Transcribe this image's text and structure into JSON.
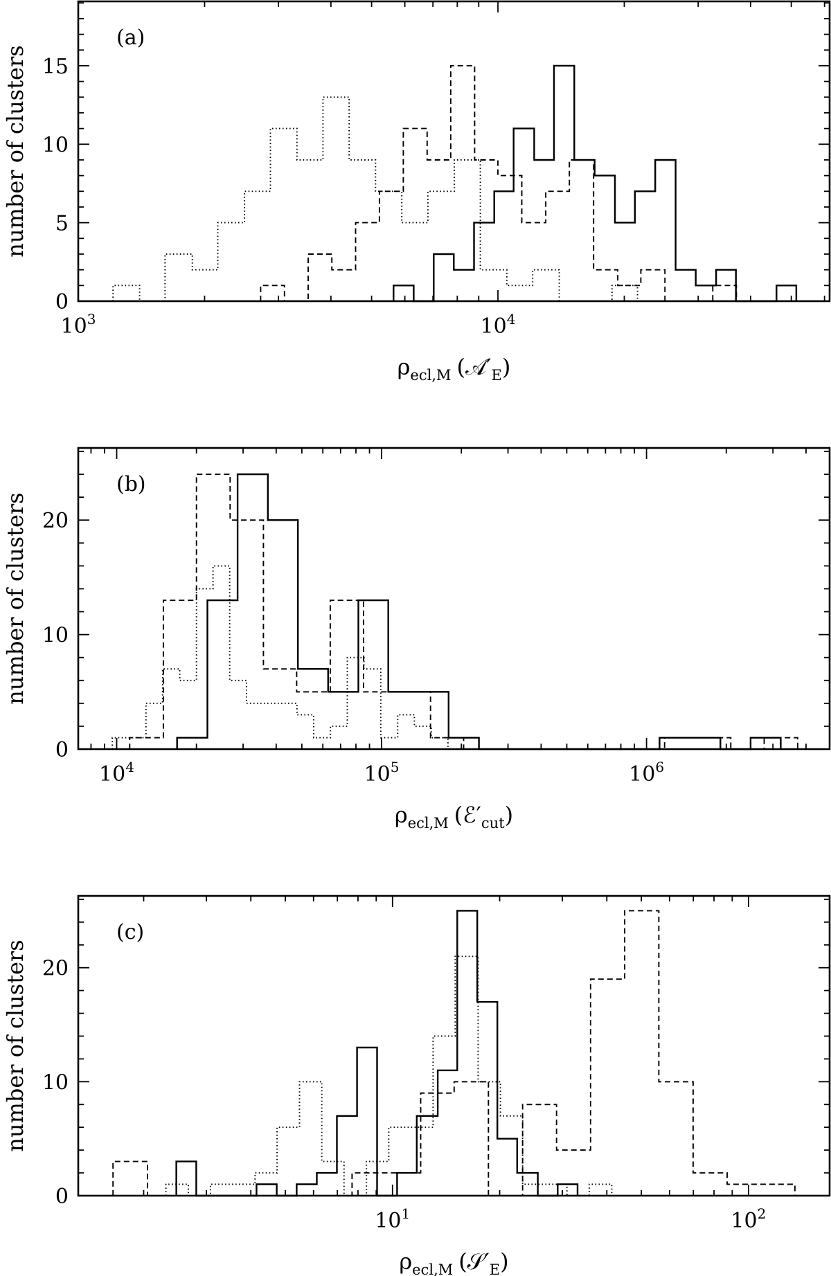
{
  "chart_data": [
    {
      "type": "bar",
      "style": "step-histogram",
      "panel_label": "(a)",
      "ylabel": "number of clusters",
      "xlabel": {
        "symbol": "ρ",
        "sub": "ecl,M",
        "open": "(",
        "arg": "𝒜′",
        "arg_sub": "E",
        "close": ")"
      },
      "xscale": "log",
      "xlim": [
        1000,
        61700
      ],
      "ylim": [
        0,
        19.1
      ],
      "grid": false,
      "y_ticks": [
        0,
        5,
        10,
        15
      ],
      "y_minor_step": 1,
      "x_ticks": [
        {
          "value": 1000,
          "base": "10",
          "exp": "3"
        },
        {
          "value": 10000,
          "base": "10",
          "exp": "4"
        }
      ],
      "series": [
        {
          "line_style": "solid",
          "bin_edges": [
            5640,
            6300,
            7030,
            7850,
            8770,
            9800,
            10900,
            12200,
            13600,
            15200,
            17000,
            19000,
            21200,
            23700,
            26500,
            29600,
            33100,
            36900,
            41200,
            46100,
            51400
          ],
          "counts": [
            1,
            0,
            3,
            2,
            5,
            7,
            11,
            9,
            15,
            9,
            8,
            5,
            7,
            9,
            2,
            1,
            2,
            0,
            0,
            1
          ]
        },
        {
          "line_style": "dashed",
          "bin_edges": [
            2720,
            3100,
            3530,
            4020,
            4580,
            5220,
            5950,
            6780,
            7720,
            8800,
            10000,
            11400,
            13000,
            14800,
            16900,
            19300,
            21900,
            25000,
            28500,
            32500,
            37000
          ],
          "counts": [
            1,
            0,
            3,
            2,
            5,
            7,
            11,
            9,
            15,
            9,
            8,
            5,
            7,
            9,
            2,
            1,
            2,
            0,
            0,
            1
          ]
        },
        {
          "line_style": "dotted",
          "bin_edges": [
            1210,
            1400,
            1610,
            1870,
            2150,
            2490,
            2870,
            3320,
            3830,
            4420,
            5110,
            5900,
            6810,
            7870,
            9080,
            10500,
            12100,
            14000,
            16200,
            18700,
            21500
          ],
          "counts": [
            1,
            0,
            3,
            2,
            5,
            7,
            11,
            9,
            13,
            9,
            7,
            5,
            7,
            9,
            2,
            1,
            2,
            0,
            0,
            1
          ]
        }
      ]
    },
    {
      "type": "bar",
      "style": "step-histogram",
      "panel_label": "(b)",
      "ylabel": "number of clusters",
      "xlabel": {
        "symbol": "ρ",
        "sub": "ecl,M",
        "open": "(",
        "arg": "ℰ′",
        "arg_sub": "cut",
        "close": ")"
      },
      "xscale": "log",
      "xlim": [
        7160,
        4910000
      ],
      "ylim": [
        0,
        26.3
      ],
      "grid": false,
      "y_ticks": [
        0,
        10,
        20
      ],
      "y_minor_step": 2,
      "x_ticks": [
        {
          "value": 10000,
          "base": "10",
          "exp": "4"
        },
        {
          "value": 100000,
          "base": "10",
          "exp": "5"
        },
        {
          "value": 1000000,
          "base": "10",
          "exp": "6"
        }
      ],
      "series": [
        {
          "line_style": "solid",
          "bin_edges": [
            16900,
            22000,
            28600,
            37200,
            48300,
            62800,
            81700,
            106000,
            138000,
            179000,
            233000,
            303000,
            394000,
            512000,
            665000,
            864000,
            1120000,
            1460000,
            1900000,
            2470000,
            3210000
          ],
          "counts": [
            1,
            13,
            24,
            20,
            7,
            5,
            13,
            5,
            5,
            1,
            0,
            0,
            0,
            0,
            0,
            0,
            1,
            1,
            0,
            1
          ]
        },
        {
          "line_style": "dashed",
          "bin_edges": [
            11200,
            15000,
            20000,
            26800,
            35800,
            47800,
            64000,
            85500,
            114000,
            153000,
            204000,
            273000,
            365000,
            488000,
            652000,
            872000,
            1170000,
            1560000,
            2080000,
            2780000,
            3720000
          ],
          "counts": [
            1,
            13,
            24,
            20,
            7,
            5,
            13,
            5,
            5,
            1,
            0,
            0,
            0,
            0,
            0,
            0,
            1,
            1,
            0,
            1
          ]
        },
        {
          "line_style": "dotted",
          "bin_edges": [
            9630,
            11100,
            12900,
            14900,
            17300,
            20000,
            23100,
            26700,
            30900,
            35800,
            41400,
            47900,
            55400,
            64100,
            74200,
            85800,
            99300,
            115000,
            133000,
            154000,
            178000
          ],
          "counts": [
            1,
            1,
            4,
            7,
            6,
            14,
            16,
            6,
            4,
            4,
            4,
            3,
            1,
            2,
            8,
            7,
            1,
            3,
            2,
            1
          ]
        }
      ]
    },
    {
      "type": "bar",
      "style": "step-histogram",
      "panel_label": "(c)",
      "ylabel": "number of clusters",
      "xlabel": {
        "symbol": "ρ",
        "sub": "ecl,M",
        "open": "(",
        "arg": "𝒮′",
        "arg_sub": "E",
        "close": ")"
      },
      "xscale": "log",
      "xlim": [
        1.31,
        169
      ],
      "ylim": [
        0,
        26.3
      ],
      "grid": false,
      "y_ticks": [
        0,
        10,
        20
      ],
      "y_minor_step": 2,
      "x_ticks": [
        {
          "value": 10,
          "base": "10",
          "exp": "1"
        },
        {
          "value": 100,
          "base": "10",
          "exp": "2"
        }
      ],
      "series": [
        {
          "line_style": "solid",
          "bin_edges": [
            2.47,
            2.81,
            3.2,
            3.65,
            4.15,
            4.73,
            5.38,
            6.13,
            6.98,
            7.95,
            9.05,
            10.3,
            11.7,
            13.4,
            15.2,
            17.3,
            19.7,
            22.4,
            25.6,
            29.1,
            33.1
          ],
          "counts": [
            3,
            0,
            0,
            0,
            1,
            0,
            1,
            2,
            7,
            13,
            0,
            2,
            7,
            11,
            25,
            17,
            5,
            2,
            0,
            1
          ]
        },
        {
          "line_style": "dashed",
          "bin_edges": [
            1.64,
            2.05,
            2.55,
            3.19,
            3.97,
            4.95,
            6.17,
            7.7,
            9.6,
            12.0,
            14.9,
            18.6,
            23.2,
            28.9,
            36.0,
            44.9,
            56.0,
            69.9,
            87.1,
            109,
            135
          ],
          "counts": [
            3,
            0,
            0,
            0,
            0,
            0,
            0,
            2,
            2,
            9,
            10,
            0,
            8,
            4,
            19,
            25,
            10,
            2,
            1,
            1
          ]
        },
        {
          "line_style": "dotted",
          "bin_edges": [
            2.31,
            2.67,
            3.08,
            3.56,
            4.11,
            4.74,
            5.48,
            6.33,
            7.31,
            8.45,
            9.76,
            11.3,
            13.0,
            15.0,
            17.4,
            20.1,
            23.2,
            26.8,
            30.9,
            35.7,
            41.3
          ],
          "counts": [
            1,
            0,
            1,
            1,
            2,
            6,
            10,
            3,
            0,
            3,
            6,
            6,
            14,
            21,
            10,
            7,
            1,
            1,
            0,
            1
          ]
        }
      ]
    }
  ]
}
